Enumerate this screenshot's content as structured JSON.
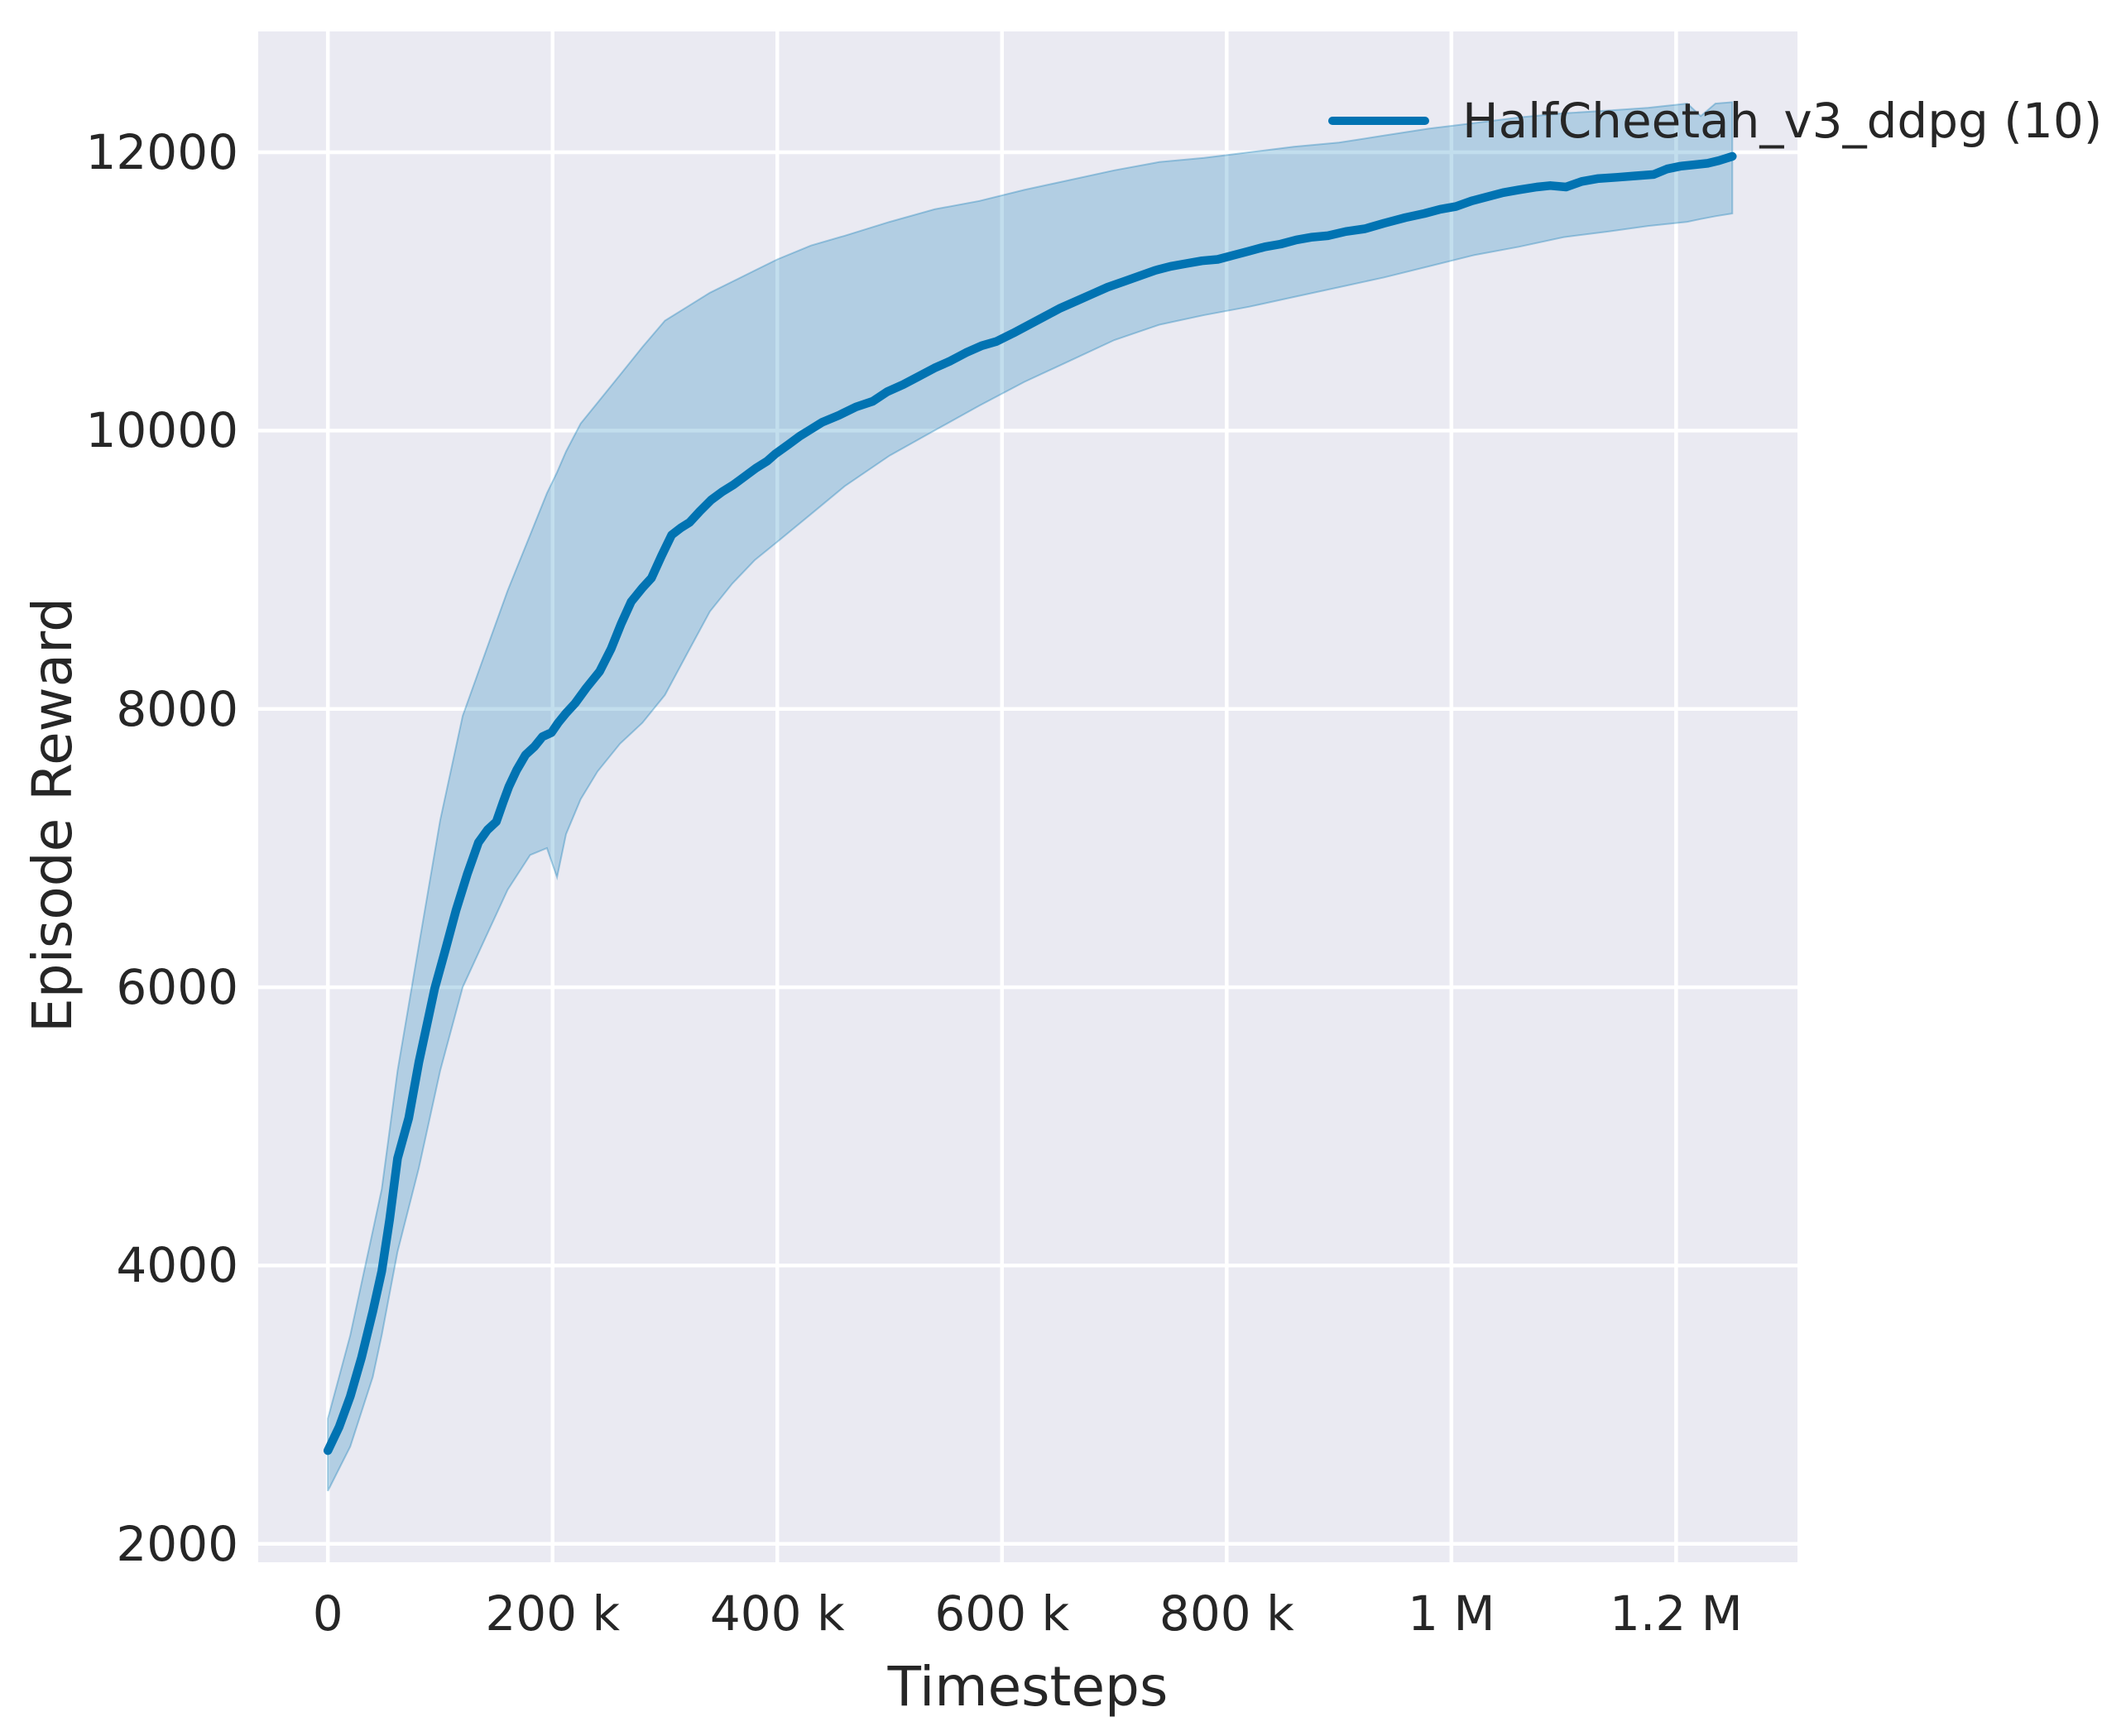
{
  "figure": {
    "colors": {
      "line": "#0173b2",
      "band_fill": "rgba(1,115,178,0.24)",
      "band_edge": "rgba(1,115,178,0.32)",
      "plot_bg": "#eaeaf2",
      "grid": "#ffffff",
      "text": "#262626",
      "fig_bg": "#ffffff"
    }
  },
  "chart_data": {
    "type": "line",
    "title": "",
    "xlabel": "Timesteps",
    "ylabel": "Episode Reward",
    "grid": true,
    "legend_position": "upper right",
    "legend": [
      {
        "label": "HalfCheetah_v3_ddpg (10)",
        "color": "#0173b2"
      }
    ],
    "xlim": [
      -62000,
      1308000
    ],
    "ylim": [
      1868,
      12868
    ],
    "xticks": [
      {
        "v": 0,
        "label": "0"
      },
      {
        "v": 200000,
        "label": "200 k"
      },
      {
        "v": 400000,
        "label": "400 k"
      },
      {
        "v": 600000,
        "label": "600 k"
      },
      {
        "v": 800000,
        "label": "800 k"
      },
      {
        "v": 1000000,
        "label": "1 M"
      },
      {
        "v": 1200000,
        "label": "1.2 M"
      }
    ],
    "yticks": [
      {
        "v": 2000,
        "label": "2000"
      },
      {
        "v": 4000,
        "label": "4000"
      },
      {
        "v": 6000,
        "label": "6000"
      },
      {
        "v": 8000,
        "label": "8000"
      },
      {
        "v": 10000,
        "label": "10000"
      },
      {
        "v": 12000,
        "label": "12000"
      }
    ],
    "series": [
      {
        "name": "HalfCheetah_v3_ddpg (10)",
        "x": [
          0,
          10000,
          20000,
          30000,
          40000,
          48000,
          55000,
          62000,
          72000,
          81000,
          90000,
          95000,
          105000,
          114000,
          124000,
          134000,
          142000,
          150000,
          156000,
          161000,
          168000,
          176000,
          184000,
          191000,
          199000,
          205000,
          212000,
          220000,
          230000,
          242000,
          252000,
          261000,
          270000,
          280000,
          288000,
          297000,
          306000,
          314000,
          322000,
          331000,
          341000,
          351000,
          361000,
          371000,
          381000,
          391000,
          398000,
          410000,
          420000,
          430000,
          440000,
          455000,
          470000,
          485000,
          498000,
          512000,
          526000,
          540000,
          554000,
          568000,
          582000,
          595000,
          610000,
          624000,
          638000,
          652000,
          666000,
          680000,
          694000,
          708000,
          722000,
          736000,
          750000,
          764000,
          778000,
          792000,
          806000,
          820000,
          834000,
          848000,
          862000,
          876000,
          890000,
          906000,
          923000,
          940000,
          959000,
          976000,
          990000,
          1004000,
          1018000,
          1032000,
          1046000,
          1060000,
          1076000,
          1088000,
          1102000,
          1116000,
          1130000,
          1147000,
          1163000,
          1180000,
          1192000,
          1204000,
          1216000,
          1228000,
          1238000,
          1250000
        ],
        "y": [
          2670,
          2840,
          3060,
          3340,
          3670,
          3960,
          4330,
          4770,
          5060,
          5460,
          5800,
          5990,
          6280,
          6550,
          6810,
          7040,
          7130,
          7190,
          7330,
          7440,
          7560,
          7670,
          7730,
          7800,
          7830,
          7900,
          7970,
          8040,
          8150,
          8270,
          8430,
          8610,
          8770,
          8870,
          8940,
          9100,
          9250,
          9300,
          9340,
          9420,
          9500,
          9560,
          9610,
          9670,
          9730,
          9780,
          9830,
          9900,
          9960,
          10010,
          10060,
          10110,
          10170,
          10210,
          10280,
          10330,
          10390,
          10450,
          10500,
          10560,
          10610,
          10640,
          10700,
          10760,
          10820,
          10880,
          10930,
          10980,
          11030,
          11070,
          11110,
          11150,
          11180,
          11200,
          11220,
          11230,
          11260,
          11290,
          11320,
          11340,
          11370,
          11390,
          11400,
          11430,
          11450,
          11490,
          11530,
          11560,
          11590,
          11610,
          11650,
          11680,
          11710,
          11730,
          11750,
          11760,
          11750,
          11790,
          11810,
          11820,
          11830,
          11840,
          11880,
          11900,
          11910,
          11920,
          11940,
          11970
        ],
        "band": {
          "x": [
            0,
            20000,
            40000,
            48000,
            62000,
            81000,
            100000,
            120000,
            140000,
            160000,
            180000,
            195000,
            204000,
            212000,
            225000,
            240000,
            260000,
            280000,
            300000,
            320000,
            340000,
            360000,
            380000,
            400000,
            430000,
            460000,
            500000,
            540000,
            580000,
            620000,
            660000,
            700000,
            740000,
            780000,
            820000,
            860000,
            900000,
            940000,
            980000,
            1020000,
            1060000,
            1100000,
            1140000,
            1175000,
            1210000,
            1222000,
            1235000,
            1250000
          ],
          "lower": [
            2380,
            2700,
            3200,
            3500,
            4100,
            4700,
            5400,
            6000,
            6350,
            6700,
            6950,
            7000,
            6790,
            7100,
            7350,
            7550,
            7750,
            7900,
            8100,
            8400,
            8700,
            8900,
            9070,
            9200,
            9400,
            9600,
            9820,
            10000,
            10180,
            10350,
            10500,
            10650,
            10760,
            10830,
            10890,
            10960,
            11030,
            11100,
            11180,
            11260,
            11320,
            11390,
            11430,
            11470,
            11500,
            11520,
            11540,
            11560
          ],
          "upper": [
            2900,
            3500,
            4250,
            4550,
            5400,
            6300,
            7200,
            7950,
            8400,
            8850,
            9250,
            9550,
            9700,
            9850,
            10050,
            10200,
            10400,
            10600,
            10790,
            10890,
            10990,
            11070,
            11150,
            11230,
            11330,
            11400,
            11500,
            11590,
            11650,
            11730,
            11800,
            11870,
            11930,
            11960,
            12000,
            12040,
            12070,
            12120,
            12170,
            12210,
            12250,
            12280,
            12300,
            12320,
            12350,
            12260,
            12350,
            12360
          ]
        }
      }
    ]
  }
}
